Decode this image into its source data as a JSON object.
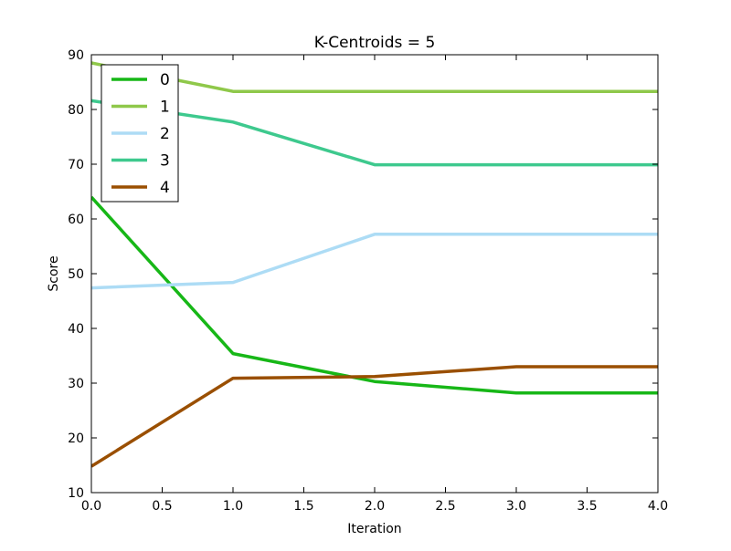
{
  "chart_data": {
    "type": "line",
    "title": "K-Centroids = 5",
    "xlabel": "Iteration",
    "ylabel": "Score",
    "xlim": [
      0.0,
      4.0
    ],
    "ylim": [
      10,
      90
    ],
    "x": [
      0,
      1,
      2,
      3,
      4
    ],
    "xticks": [
      "0.0",
      "0.5",
      "1.0",
      "1.5",
      "2.0",
      "2.5",
      "3.0",
      "3.5",
      "4.0"
    ],
    "yticks": [
      "10",
      "20",
      "30",
      "40",
      "50",
      "60",
      "70",
      "80",
      "90"
    ],
    "grid": false,
    "legend_position": "top-left",
    "series": [
      {
        "name": "0",
        "color": "#17b717",
        "values": [
          64.0,
          35.4,
          30.3,
          28.2,
          28.2
        ]
      },
      {
        "name": "1",
        "color": "#8fc84a",
        "values": [
          88.5,
          83.3,
          83.3,
          83.3,
          83.3
        ]
      },
      {
        "name": "2",
        "color": "#addcf5",
        "values": [
          47.4,
          48.4,
          57.2,
          57.2,
          57.2
        ]
      },
      {
        "name": "3",
        "color": "#3ec98e",
        "values": [
          81.6,
          77.7,
          69.9,
          69.9,
          69.9
        ]
      },
      {
        "name": "4",
        "color": "#9a4f00",
        "values": [
          14.8,
          30.9,
          31.2,
          33.0,
          33.0
        ]
      }
    ]
  }
}
